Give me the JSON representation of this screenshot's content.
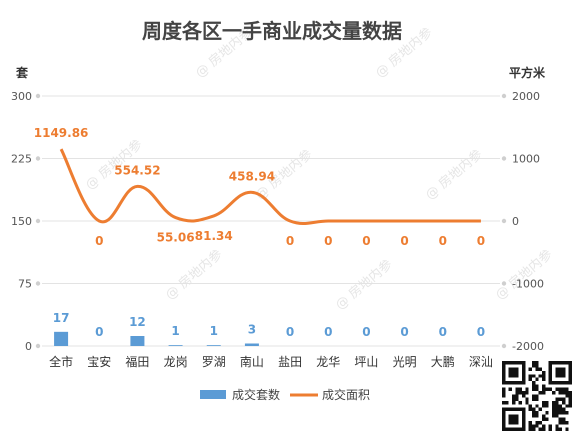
{
  "chart_data": {
    "type": "bar+line",
    "title": "周度各区一手商业成交量数据",
    "categories": [
      "全市",
      "宝安",
      "福田",
      "龙岗",
      "罗湖",
      "南山",
      "盐田",
      "龙华",
      "坪山",
      "光明",
      "大鹏",
      "深汕"
    ],
    "series": [
      {
        "name": "成交套数",
        "type": "bar",
        "axis": "left",
        "color": "#5b9bd5",
        "values": [
          17,
          0,
          12,
          1,
          1,
          3,
          0,
          0,
          0,
          0,
          0,
          0
        ],
        "labels": [
          "17",
          "0",
          "12",
          "1",
          "1",
          "3",
          "0",
          "0",
          "0",
          "0",
          "0",
          "0"
        ]
      },
      {
        "name": "成交面积",
        "type": "line",
        "axis": "right",
        "color": "#ed7d31",
        "values": [
          1149.86,
          0,
          554.52,
          55.06,
          81.34,
          458.94,
          0,
          0,
          0,
          0,
          0,
          0
        ],
        "labels": [
          "1149.86",
          "0",
          "554.52",
          "55.06",
          "81.34",
          "458.94",
          "0",
          "0",
          "0",
          "0",
          "0",
          "0"
        ]
      }
    ],
    "y_left": {
      "label": "套",
      "min": 0,
      "max": 300,
      "ticks": [
        "0",
        "75",
        "150",
        "225",
        "300"
      ]
    },
    "y_right": {
      "label": "平方米",
      "min": -2000,
      "max": 2000,
      "ticks": [
        "-2000",
        "-1000",
        "0",
        "1000",
        "2000"
      ]
    },
    "grid": true,
    "legend": "bottom"
  },
  "watermark": "@ 房地内参"
}
